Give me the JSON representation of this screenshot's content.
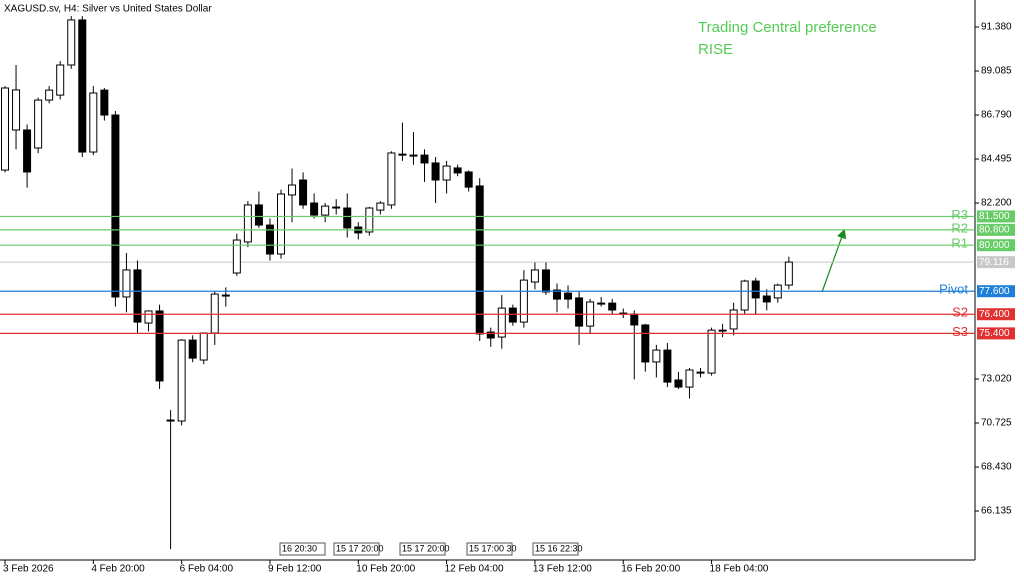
{
  "chart_data": {
    "type": "candlestick",
    "title": "XAGUSD.sv, H4:  Silver vs United States Dollar",
    "annotation": [
      "Trading Central preference",
      "RISE"
    ],
    "categories": [
      "3 Feb 2026",
      null,
      null,
      null,
      null,
      null,
      null,
      null,
      "4 Feb 20:00",
      null,
      null,
      null,
      null,
      null,
      null,
      null,
      "6 Feb 04:00",
      null,
      null,
      null,
      null,
      null,
      null,
      null,
      "9 Feb 12:00",
      null,
      null,
      null,
      null,
      null,
      null,
      null,
      "10 Feb 20:00",
      null,
      null,
      null,
      null,
      null,
      null,
      null,
      "12 Feb 04:00",
      null,
      null,
      null,
      null,
      null,
      null,
      null,
      "13 Feb 12:00",
      null,
      null,
      null,
      null,
      null,
      null,
      null,
      "16 Feb 20:00",
      null,
      null,
      null,
      null,
      null,
      null,
      null,
      "18 Feb 04:00",
      null,
      null,
      null,
      null,
      null,
      null,
      null
    ],
    "open": [
      83.92,
      86.01,
      86.01,
      85.07,
      87.57,
      87.83,
      89.4,
      91.75,
      84.86,
      88.09,
      86.79,
      77.3,
      78.71,
      75.94,
      76.57,
      70.88,
      70.83,
      75.05,
      74.01,
      75.42,
      77.4,
      78.55,
      80.17,
      82.1,
      81.05,
      79.54,
      82.62,
      83.4,
      82.2,
      81.57,
      81.99,
      81.94,
      80.95,
      80.69,
      81.83,
      82.1,
      84.7,
      84.7,
      84.7,
      84.29,
      83.4,
      84.03,
      83.82,
      83.09,
      75.47,
      75.21,
      76.72,
      75.99,
      78.08,
      78.71,
      77.66,
      77.5,
      77.25,
      75.78,
      76.98,
      76.98,
      76.46,
      76.41,
      75.84,
      73.91,
      74.53,
      72.97,
      72.6,
      73.38,
      73.33,
      75.57,
      75.63,
      76.62,
      78.13,
      77.35,
      77.25,
      77.92
    ],
    "high": [
      88.3,
      89.4,
      86.3,
      87.7,
      88.3,
      89.6,
      91.95,
      91.95,
      88.3,
      88.2,
      87.0,
      79.6,
      79.2,
      76.6,
      76.9,
      71.4,
      75.1,
      75.3,
      75.4,
      77.6,
      77.8,
      80.6,
      82.3,
      82.8,
      81.4,
      82.9,
      84.0,
      83.8,
      82.7,
      82.2,
      82.4,
      82.7,
      81.2,
      82.0,
      82.3,
      84.9,
      86.4,
      85.9,
      85.0,
      84.6,
      84.4,
      84.2,
      83.9,
      83.5,
      75.7,
      77.4,
      76.9,
      78.7,
      79.1,
      79.1,
      78.0,
      77.9,
      77.6,
      77.2,
      77.3,
      77.2,
      76.7,
      76.6,
      75.9,
      74.8,
      74.9,
      73.4,
      73.6,
      73.6,
      75.7,
      75.9,
      77.0,
      78.2,
      78.3,
      77.7,
      78.0,
      79.4
    ],
    "low": [
      83.8,
      85.0,
      83.0,
      84.8,
      87.4,
      87.6,
      89.2,
      84.6,
      84.7,
      86.5,
      76.8,
      76.5,
      75.4,
      75.5,
      72.5,
      64.15,
      70.6,
      73.9,
      73.8,
      74.8,
      76.8,
      78.4,
      79.9,
      80.9,
      79.2,
      79.3,
      81.2,
      81.9,
      81.4,
      81.2,
      81.6,
      80.4,
      80.3,
      80.5,
      81.6,
      81.9,
      84.4,
      84.2,
      83.3,
      82.2,
      82.7,
      83.6,
      82.8,
      75.0,
      74.7,
      74.6,
      75.8,
      75.7,
      77.7,
      77.4,
      76.5,
      76.7,
      74.8,
      75.4,
      76.8,
      76.4,
      76.2,
      73.0,
      73.4,
      73.1,
      72.6,
      72.5,
      72.0,
      73.1,
      73.2,
      75.2,
      75.3,
      76.4,
      76.4,
      76.6,
      77.0,
      77.7
    ],
    "close": [
      88.2,
      88.1,
      83.82,
      87.57,
      88.09,
      89.4,
      91.75,
      84.86,
      87.94,
      86.79,
      77.3,
      78.71,
      75.99,
      76.57,
      72.92,
      70.83,
      75.05,
      74.11,
      75.42,
      77.45,
      77.35,
      80.27,
      82.1,
      81.05,
      79.54,
      82.67,
      83.14,
      82.1,
      81.57,
      82.04,
      81.94,
      80.9,
      80.64,
      81.94,
      82.2,
      84.81,
      84.75,
      84.65,
      84.29,
      83.4,
      84.13,
      83.77,
      83.03,
      75.37,
      75.16,
      76.72,
      75.99,
      78.18,
      78.71,
      77.56,
      77.19,
      77.19,
      75.78,
      77.04,
      76.93,
      76.62,
      76.41,
      75.84,
      73.91,
      74.53,
      72.86,
      72.6,
      73.49,
      73.33,
      75.57,
      75.52,
      76.62,
      78.13,
      77.25,
      77.04,
      77.92,
      79.12
    ],
    "ylim": [
      63.58,
      92.79
    ],
    "yticks": [
      {
        "value": 91.38,
        "label": "91.380"
      },
      {
        "value": 89.085,
        "label": "89.085"
      },
      {
        "value": 86.79,
        "label": "86.790"
      },
      {
        "value": 84.495,
        "label": "84.495"
      },
      {
        "value": 82.2,
        "label": "82.200"
      },
      {
        "value": 73.02,
        "label": "73.020"
      },
      {
        "value": 70.725,
        "label": "70.725"
      },
      {
        "value": 68.43,
        "label": "68.430"
      },
      {
        "value": 66.135,
        "label": "66.135"
      }
    ],
    "levels": [
      {
        "name": "R3",
        "value": 81.5,
        "value_label": "81.500",
        "color": "#66cc66"
      },
      {
        "name": "R2",
        "value": 80.8,
        "value_label": "80.800",
        "color": "#66cc66"
      },
      {
        "name": "R1",
        "value": 80,
        "value_label": "80.000",
        "color": "#66cc66"
      },
      {
        "name": "Pivot",
        "value": 77.6,
        "value_label": "77.600",
        "color": "#1e7fd8"
      },
      {
        "name": "S2",
        "value": 76.4,
        "value_label": "76.400",
        "color": "#e03030"
      },
      {
        "name": "S3",
        "value": 75.4,
        "value_label": "75.400",
        "color": "#e03030"
      }
    ],
    "current_price": {
      "value": 79.116,
      "label": "79.116",
      "color": "#c8c8c8"
    },
    "event_labels": [
      "16 20:30",
      "15 17 20:00",
      "15 17 20:00",
      "15 17:00 30",
      "15 16 22:30"
    ]
  }
}
